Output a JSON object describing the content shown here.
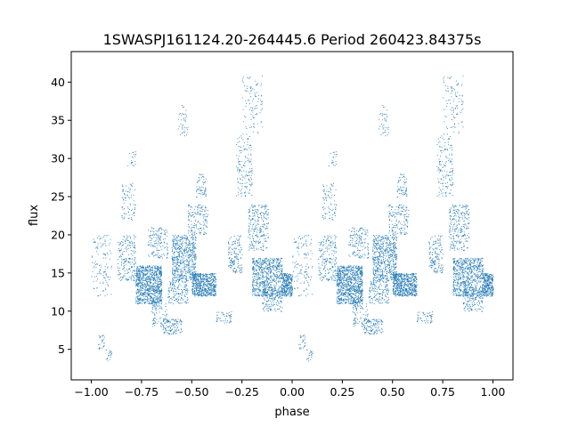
{
  "chart_data": {
    "type": "scatter",
    "title": "1SWASPJ161124.20-264445.6 Period 260423.84375s",
    "xlabel": "phase",
    "ylabel": "flux",
    "xlim": [
      -1.1,
      1.1
    ],
    "ylim": [
      1,
      44
    ],
    "x_ticks": [
      -1.0,
      -0.75,
      -0.5,
      -0.25,
      0.0,
      0.25,
      0.5,
      0.75,
      1.0
    ],
    "x_tick_labels": [
      "−1.00",
      "−0.75",
      "−0.50",
      "−0.25",
      "0.00",
      "0.25",
      "0.50",
      "0.75",
      "1.00"
    ],
    "y_ticks": [
      5,
      10,
      15,
      20,
      25,
      30,
      35,
      40
    ],
    "y_tick_labels": [
      "5",
      "10",
      "15",
      "20",
      "25",
      "30",
      "35",
      "40"
    ],
    "grid": false,
    "marker_color": "#1f77b4",
    "series": [
      {
        "description_free": true,
        "phase_repeat": true,
        "clusters": [
          {
            "x": [
              -1.0,
              -0.9
            ],
            "y": [
              12,
              20
            ],
            "n": 120
          },
          {
            "x": [
              -0.97,
              -0.93
            ],
            "y": [
              5,
              7
            ],
            "n": 25
          },
          {
            "x": [
              -0.93,
              -0.9
            ],
            "y": [
              3.5,
              5
            ],
            "n": 20
          },
          {
            "x": [
              -0.87,
              -0.78
            ],
            "y": [
              14,
              20
            ],
            "n": 200
          },
          {
            "x": [
              -0.85,
              -0.78
            ],
            "y": [
              22,
              27
            ],
            "n": 80
          },
          {
            "x": [
              -0.82,
              -0.78
            ],
            "y": [
              29,
              31
            ],
            "n": 20
          },
          {
            "x": [
              -0.78,
              -0.65
            ],
            "y": [
              11,
              16
            ],
            "n": 900
          },
          {
            "x": [
              -0.72,
              -0.62
            ],
            "y": [
              17,
              21
            ],
            "n": 150
          },
          {
            "x": [
              -0.7,
              -0.62
            ],
            "y": [
              8,
              11
            ],
            "n": 80
          },
          {
            "x": [
              -0.65,
              -0.55
            ],
            "y": [
              7,
              9
            ],
            "n": 120
          },
          {
            "x": [
              -0.62,
              -0.52
            ],
            "y": [
              11,
              14
            ],
            "n": 150
          },
          {
            "x": [
              -0.6,
              -0.48
            ],
            "y": [
              14,
              20
            ],
            "n": 600
          },
          {
            "x": [
              -0.57,
              -0.52
            ],
            "y": [
              33,
              37
            ],
            "n": 40
          },
          {
            "x": [
              -0.52,
              -0.42
            ],
            "y": [
              20,
              24
            ],
            "n": 150
          },
          {
            "x": [
              -0.48,
              -0.43
            ],
            "y": [
              25,
              28
            ],
            "n": 60
          },
          {
            "x": [
              -0.5,
              -0.38
            ],
            "y": [
              12,
              15
            ],
            "n": 600
          },
          {
            "x": [
              -0.38,
              -0.3
            ],
            "y": [
              8.5,
              10
            ],
            "n": 50
          },
          {
            "x": [
              -0.32,
              -0.25
            ],
            "y": [
              15,
              20
            ],
            "n": 150
          },
          {
            "x": [
              -0.28,
              -0.2
            ],
            "y": [
              25,
              33
            ],
            "n": 150
          },
          {
            "x": [
              -0.25,
              -0.15
            ],
            "y": [
              33,
              41
            ],
            "n": 100
          },
          {
            "x": [
              -0.22,
              -0.12
            ],
            "y": [
              18,
              24
            ],
            "n": 250
          },
          {
            "x": [
              -0.2,
              -0.05
            ],
            "y": [
              12,
              17
            ],
            "n": 700
          },
          {
            "x": [
              -0.15,
              -0.05
            ],
            "y": [
              10,
              13
            ],
            "n": 150
          },
          {
            "x": [
              -0.05,
              0.0
            ],
            "y": [
              12,
              15
            ],
            "n": 300
          }
        ]
      }
    ]
  }
}
